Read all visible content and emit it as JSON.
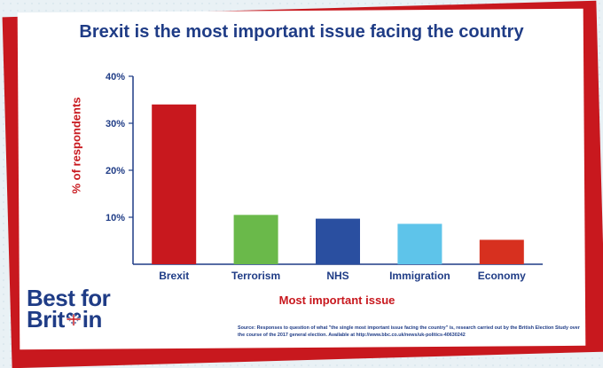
{
  "title": "Brexit is the most important issue facing the country",
  "chart_data": {
    "type": "bar",
    "title": "Brexit is the most important issue facing the country",
    "xlabel": "Most important issue",
    "ylabel": "% of respondents",
    "categories": [
      "Brexit",
      "Terrorism",
      "NHS",
      "Immigration",
      "Economy"
    ],
    "values": [
      34,
      10.5,
      9.7,
      8.6,
      5.2
    ],
    "colors": [
      "#c8181e",
      "#6ab94a",
      "#2a4fa0",
      "#5ec4ea",
      "#d7301f"
    ],
    "ylim": [
      0,
      40
    ],
    "yticks": [
      "10%",
      "20%",
      "30%",
      "40%"
    ],
    "ytick_values": [
      10,
      20,
      30,
      40
    ],
    "grid": false,
    "legend": "none"
  },
  "logo": {
    "line1": "Best for",
    "line2a": "Brit",
    "line2b": "in"
  },
  "source": "Source: Responses to question of what \"the single most important issue facing the country\" is, research carried out by the British Election Study over the course of the 2017 general election. Available at http://www.bbc.co.uk/news/uk-politics-40630242"
}
